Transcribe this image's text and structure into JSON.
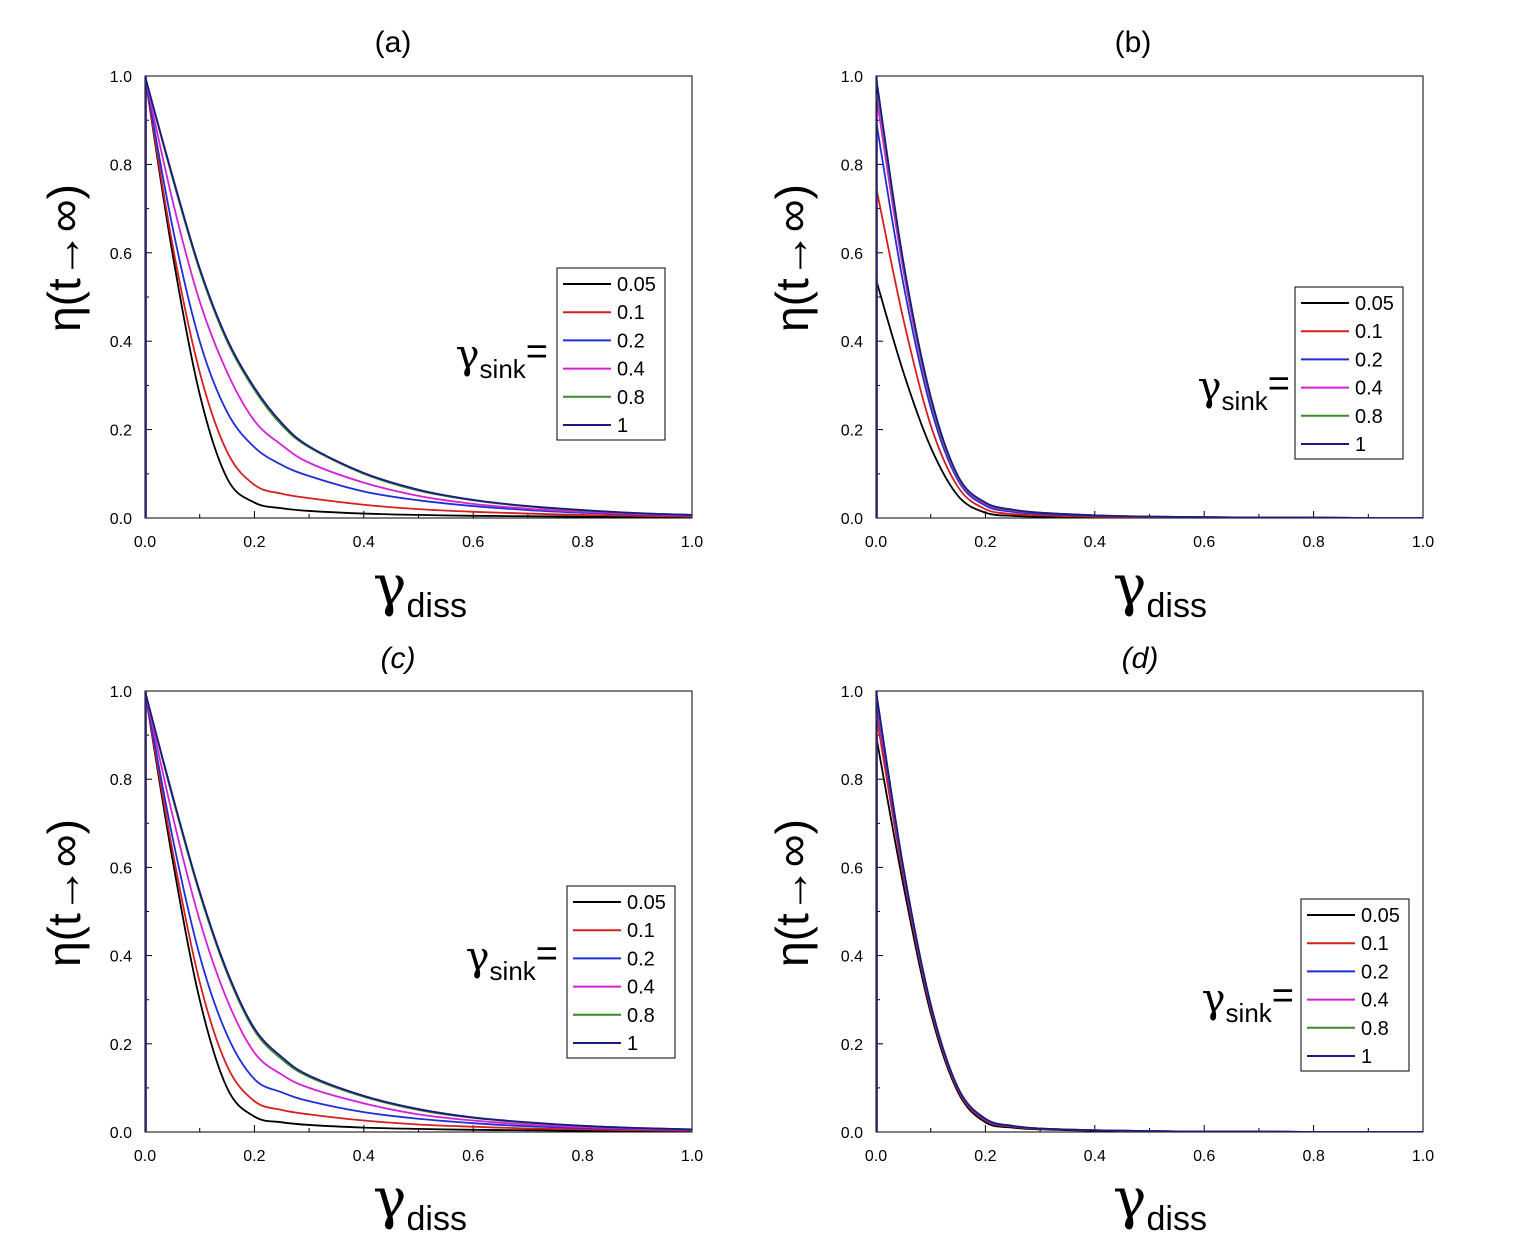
{
  "figure": {
    "y_axis_label": "η(t→∞)",
    "x_axis_symbol": "γ",
    "x_axis_subscript": "diss",
    "legend_prefix_symbol": "γ",
    "legend_prefix_subscript": "sink",
    "legend_prefix_equals": "="
  },
  "series_colors": {
    "0.05": "#000000",
    "0.1": "#d62020",
    "0.2": "#1f2fd6",
    "0.4": "#d620d6",
    "0.8": "#3a8a2a",
    "1": "#1a1a80"
  },
  "chart_data": [
    {
      "type": "line",
      "title": "(a)",
      "title_italic": false,
      "xlabel": "γdiss",
      "ylabel": "η(t→∞)",
      "xlim": [
        0,
        1
      ],
      "ylim": [
        0,
        1
      ],
      "xticks": [
        "0.0",
        "0.2",
        "0.4",
        "0.6",
        "0.8",
        "1.0"
      ],
      "yticks": [
        "0.0",
        "0.2",
        "0.4",
        "0.6",
        "0.8",
        "1.0"
      ],
      "legend_title": "γsink=",
      "legend_position": "center-right",
      "x": [
        0,
        0.05,
        0.1,
        0.15,
        0.2,
        0.25,
        0.3,
        0.4,
        0.5,
        0.6,
        0.7,
        0.8,
        0.9,
        1.0
      ],
      "series": [
        {
          "name": "0.05",
          "values": [
            1.0,
            0.6,
            0.28,
            0.09,
            0.035,
            0.022,
            0.016,
            0.01,
            0.007,
            0.005,
            0.004,
            0.003,
            0.002,
            0.001
          ]
        },
        {
          "name": "0.1",
          "values": [
            1.0,
            0.62,
            0.33,
            0.15,
            0.075,
            0.055,
            0.045,
            0.03,
            0.02,
            0.014,
            0.01,
            0.007,
            0.005,
            0.003
          ]
        },
        {
          "name": "0.2",
          "values": [
            1.0,
            0.66,
            0.4,
            0.24,
            0.16,
            0.12,
            0.095,
            0.06,
            0.04,
            0.027,
            0.018,
            0.012,
            0.008,
            0.005
          ]
        },
        {
          "name": "0.4",
          "values": [
            1.0,
            0.72,
            0.49,
            0.33,
            0.22,
            0.165,
            0.125,
            0.08,
            0.05,
            0.032,
            0.021,
            0.014,
            0.009,
            0.006
          ]
        },
        {
          "name": "0.8",
          "values": [
            1.0,
            0.77,
            0.56,
            0.4,
            0.29,
            0.21,
            0.16,
            0.1,
            0.062,
            0.04,
            0.026,
            0.017,
            0.011,
            0.007
          ]
        },
        {
          "name": "1",
          "values": [
            1.0,
            0.775,
            0.565,
            0.405,
            0.295,
            0.215,
            0.162,
            0.102,
            0.064,
            0.041,
            0.027,
            0.018,
            0.011,
            0.007
          ]
        }
      ]
    },
    {
      "type": "line",
      "title": "(b)",
      "title_italic": false,
      "xlabel": "γdiss",
      "ylabel": "η(t→∞)",
      "xlim": [
        0,
        1
      ],
      "ylim": [
        0,
        1
      ],
      "xticks": [
        "0.0",
        "0.2",
        "0.4",
        "0.6",
        "0.8",
        "1.0"
      ],
      "yticks": [
        "0.0",
        "0.2",
        "0.4",
        "0.6",
        "0.8",
        "1.0"
      ],
      "legend_title": "γsink=",
      "legend_position": "center-right",
      "x": [
        0,
        0.05,
        0.1,
        0.15,
        0.2,
        0.25,
        0.3,
        0.4,
        0.5,
        0.6,
        0.7,
        0.8,
        0.9,
        1.0
      ],
      "series": [
        {
          "name": "0.05",
          "values": [
            0.54,
            0.33,
            0.16,
            0.05,
            0.012,
            0.005,
            0.003,
            0.002,
            0.001,
            0.001,
            0.0,
            0.0,
            0.0,
            0.0
          ]
        },
        {
          "name": "0.1",
          "values": [
            0.75,
            0.45,
            0.21,
            0.07,
            0.02,
            0.009,
            0.006,
            0.003,
            0.002,
            0.001,
            0.001,
            0.0,
            0.0,
            0.0
          ]
        },
        {
          "name": "0.2",
          "values": [
            0.9,
            0.53,
            0.25,
            0.085,
            0.028,
            0.014,
            0.009,
            0.005,
            0.003,
            0.002,
            0.001,
            0.001,
            0.0,
            0.0
          ]
        },
        {
          "name": "0.4",
          "values": [
            0.96,
            0.56,
            0.265,
            0.09,
            0.032,
            0.017,
            0.011,
            0.006,
            0.003,
            0.002,
            0.001,
            0.001,
            0.0,
            0.0
          ]
        },
        {
          "name": "0.8",
          "values": [
            0.99,
            0.575,
            0.27,
            0.093,
            0.034,
            0.018,
            0.012,
            0.006,
            0.003,
            0.002,
            0.001,
            0.001,
            0.0,
            0.0
          ]
        },
        {
          "name": "1",
          "values": [
            1.0,
            0.58,
            0.275,
            0.095,
            0.035,
            0.019,
            0.012,
            0.006,
            0.003,
            0.002,
            0.001,
            0.001,
            0.0,
            0.0
          ]
        }
      ]
    },
    {
      "type": "line",
      "title": "(c)",
      "title_italic": true,
      "xlabel": "γdiss",
      "ylabel": "η(t→∞)",
      "xlim": [
        0,
        1
      ],
      "ylim": [
        0,
        1
      ],
      "xticks": [
        "0.0",
        "0.2",
        "0.4",
        "0.6",
        "0.8",
        "1.0"
      ],
      "yticks": [
        "0.0",
        "0.2",
        "0.4",
        "0.6",
        "0.8",
        "1.0"
      ],
      "legend_title": "γsink=",
      "legend_position": "center-right",
      "x": [
        0,
        0.05,
        0.1,
        0.15,
        0.2,
        0.25,
        0.3,
        0.4,
        0.5,
        0.6,
        0.7,
        0.8,
        0.9,
        1.0
      ],
      "series": [
        {
          "name": "0.05",
          "values": [
            1.0,
            0.62,
            0.3,
            0.1,
            0.035,
            0.022,
            0.016,
            0.01,
            0.007,
            0.005,
            0.004,
            0.003,
            0.002,
            0.001
          ]
        },
        {
          "name": "0.1",
          "values": [
            1.0,
            0.64,
            0.34,
            0.15,
            0.07,
            0.05,
            0.04,
            0.026,
            0.017,
            0.012,
            0.008,
            0.006,
            0.004,
            0.003
          ]
        },
        {
          "name": "0.2",
          "values": [
            1.0,
            0.67,
            0.4,
            0.22,
            0.12,
            0.09,
            0.07,
            0.045,
            0.03,
            0.02,
            0.013,
            0.009,
            0.006,
            0.004
          ]
        },
        {
          "name": "0.4",
          "values": [
            1.0,
            0.72,
            0.48,
            0.3,
            0.18,
            0.13,
            0.1,
            0.065,
            0.04,
            0.026,
            0.017,
            0.011,
            0.007,
            0.005
          ]
        },
        {
          "name": "0.8",
          "values": [
            1.0,
            0.76,
            0.54,
            0.36,
            0.23,
            0.165,
            0.125,
            0.08,
            0.05,
            0.032,
            0.021,
            0.014,
            0.009,
            0.006
          ]
        },
        {
          "name": "1",
          "values": [
            1.0,
            0.765,
            0.545,
            0.365,
            0.235,
            0.17,
            0.128,
            0.082,
            0.052,
            0.033,
            0.022,
            0.014,
            0.009,
            0.006
          ]
        }
      ]
    },
    {
      "type": "line",
      "title": "(d)",
      "title_italic": true,
      "xlabel": "γdiss",
      "ylabel": "η(t→∞)",
      "xlim": [
        0,
        1
      ],
      "ylim": [
        0,
        1
      ],
      "xticks": [
        "0.0",
        "0.2",
        "0.4",
        "0.6",
        "0.8",
        "1.0"
      ],
      "yticks": [
        "0.0",
        "0.2",
        "0.4",
        "0.6",
        "0.8",
        "1.0"
      ],
      "legend_title": "γsink=",
      "legend_position": "center-right",
      "x": [
        0,
        0.05,
        0.1,
        0.15,
        0.2,
        0.25,
        0.3,
        0.4,
        0.5,
        0.6,
        0.7,
        0.8,
        0.9,
        1.0
      ],
      "series": [
        {
          "name": "0.05",
          "values": [
            0.9,
            0.56,
            0.27,
            0.09,
            0.022,
            0.01,
            0.006,
            0.003,
            0.002,
            0.001,
            0.001,
            0.0,
            0.0,
            0.0
          ]
        },
        {
          "name": "0.1",
          "values": [
            0.95,
            0.58,
            0.28,
            0.095,
            0.026,
            0.012,
            0.007,
            0.004,
            0.002,
            0.001,
            0.001,
            0.0,
            0.0,
            0.0
          ]
        },
        {
          "name": "0.2",
          "values": [
            0.98,
            0.59,
            0.285,
            0.098,
            0.028,
            0.013,
            0.008,
            0.004,
            0.002,
            0.001,
            0.001,
            0.0,
            0.0,
            0.0
          ]
        },
        {
          "name": "0.4",
          "values": [
            0.99,
            0.595,
            0.288,
            0.099,
            0.029,
            0.014,
            0.008,
            0.004,
            0.002,
            0.001,
            0.001,
            0.0,
            0.0,
            0.0
          ]
        },
        {
          "name": "0.8",
          "values": [
            1.0,
            0.6,
            0.29,
            0.1,
            0.03,
            0.014,
            0.008,
            0.004,
            0.002,
            0.001,
            0.001,
            0.0,
            0.0,
            0.0
          ]
        },
        {
          "name": "1",
          "values": [
            1.0,
            0.6,
            0.29,
            0.1,
            0.03,
            0.014,
            0.008,
            0.004,
            0.002,
            0.001,
            0.001,
            0.0,
            0.0,
            0.0
          ]
        }
      ]
    }
  ]
}
